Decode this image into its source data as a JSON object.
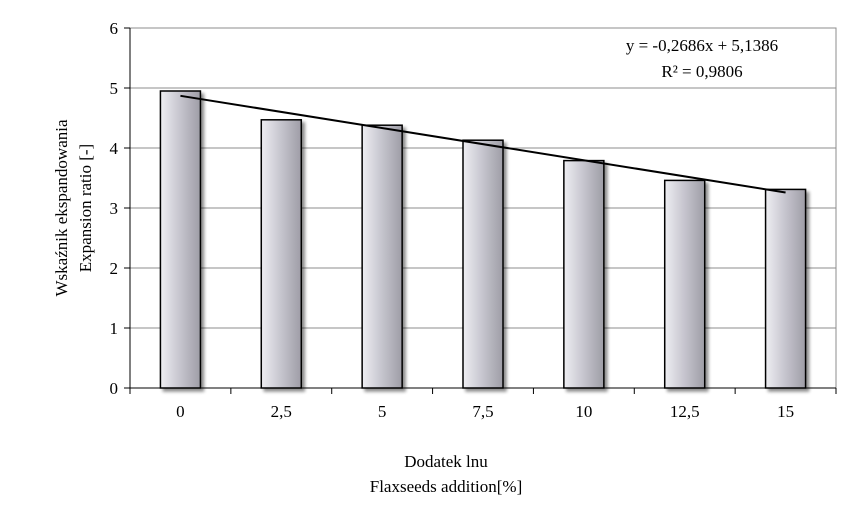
{
  "chart_data": {
    "type": "bar",
    "categories": [
      "0",
      "2,5",
      "5",
      "7,5",
      "10",
      "12,5",
      "15"
    ],
    "values": [
      4.95,
      4.47,
      4.38,
      4.13,
      3.79,
      3.46,
      3.31
    ],
    "xlabel_lines": [
      "Dodatek lnu",
      "Flaxseeds addition[%]"
    ],
    "ylabel_lines": [
      "Wskaźnik ekspandowania",
      "Expansion ratio [-]"
    ],
    "y_ticks": [
      "0",
      "1",
      "2",
      "3",
      "4",
      "5",
      "6"
    ],
    "ylim": [
      0,
      6
    ],
    "grid": true,
    "trendline": {
      "type": "linear",
      "slope": -0.2686,
      "intercept": 5.1386,
      "equation": "y = -0,2686x + 5,1386",
      "r_squared": "R² = 0,9806"
    },
    "colors": {
      "bar_fill": "#c4c3cc",
      "bar_stroke": "#000000",
      "grid": "#8c8c8c",
      "trend": "#000000"
    }
  }
}
